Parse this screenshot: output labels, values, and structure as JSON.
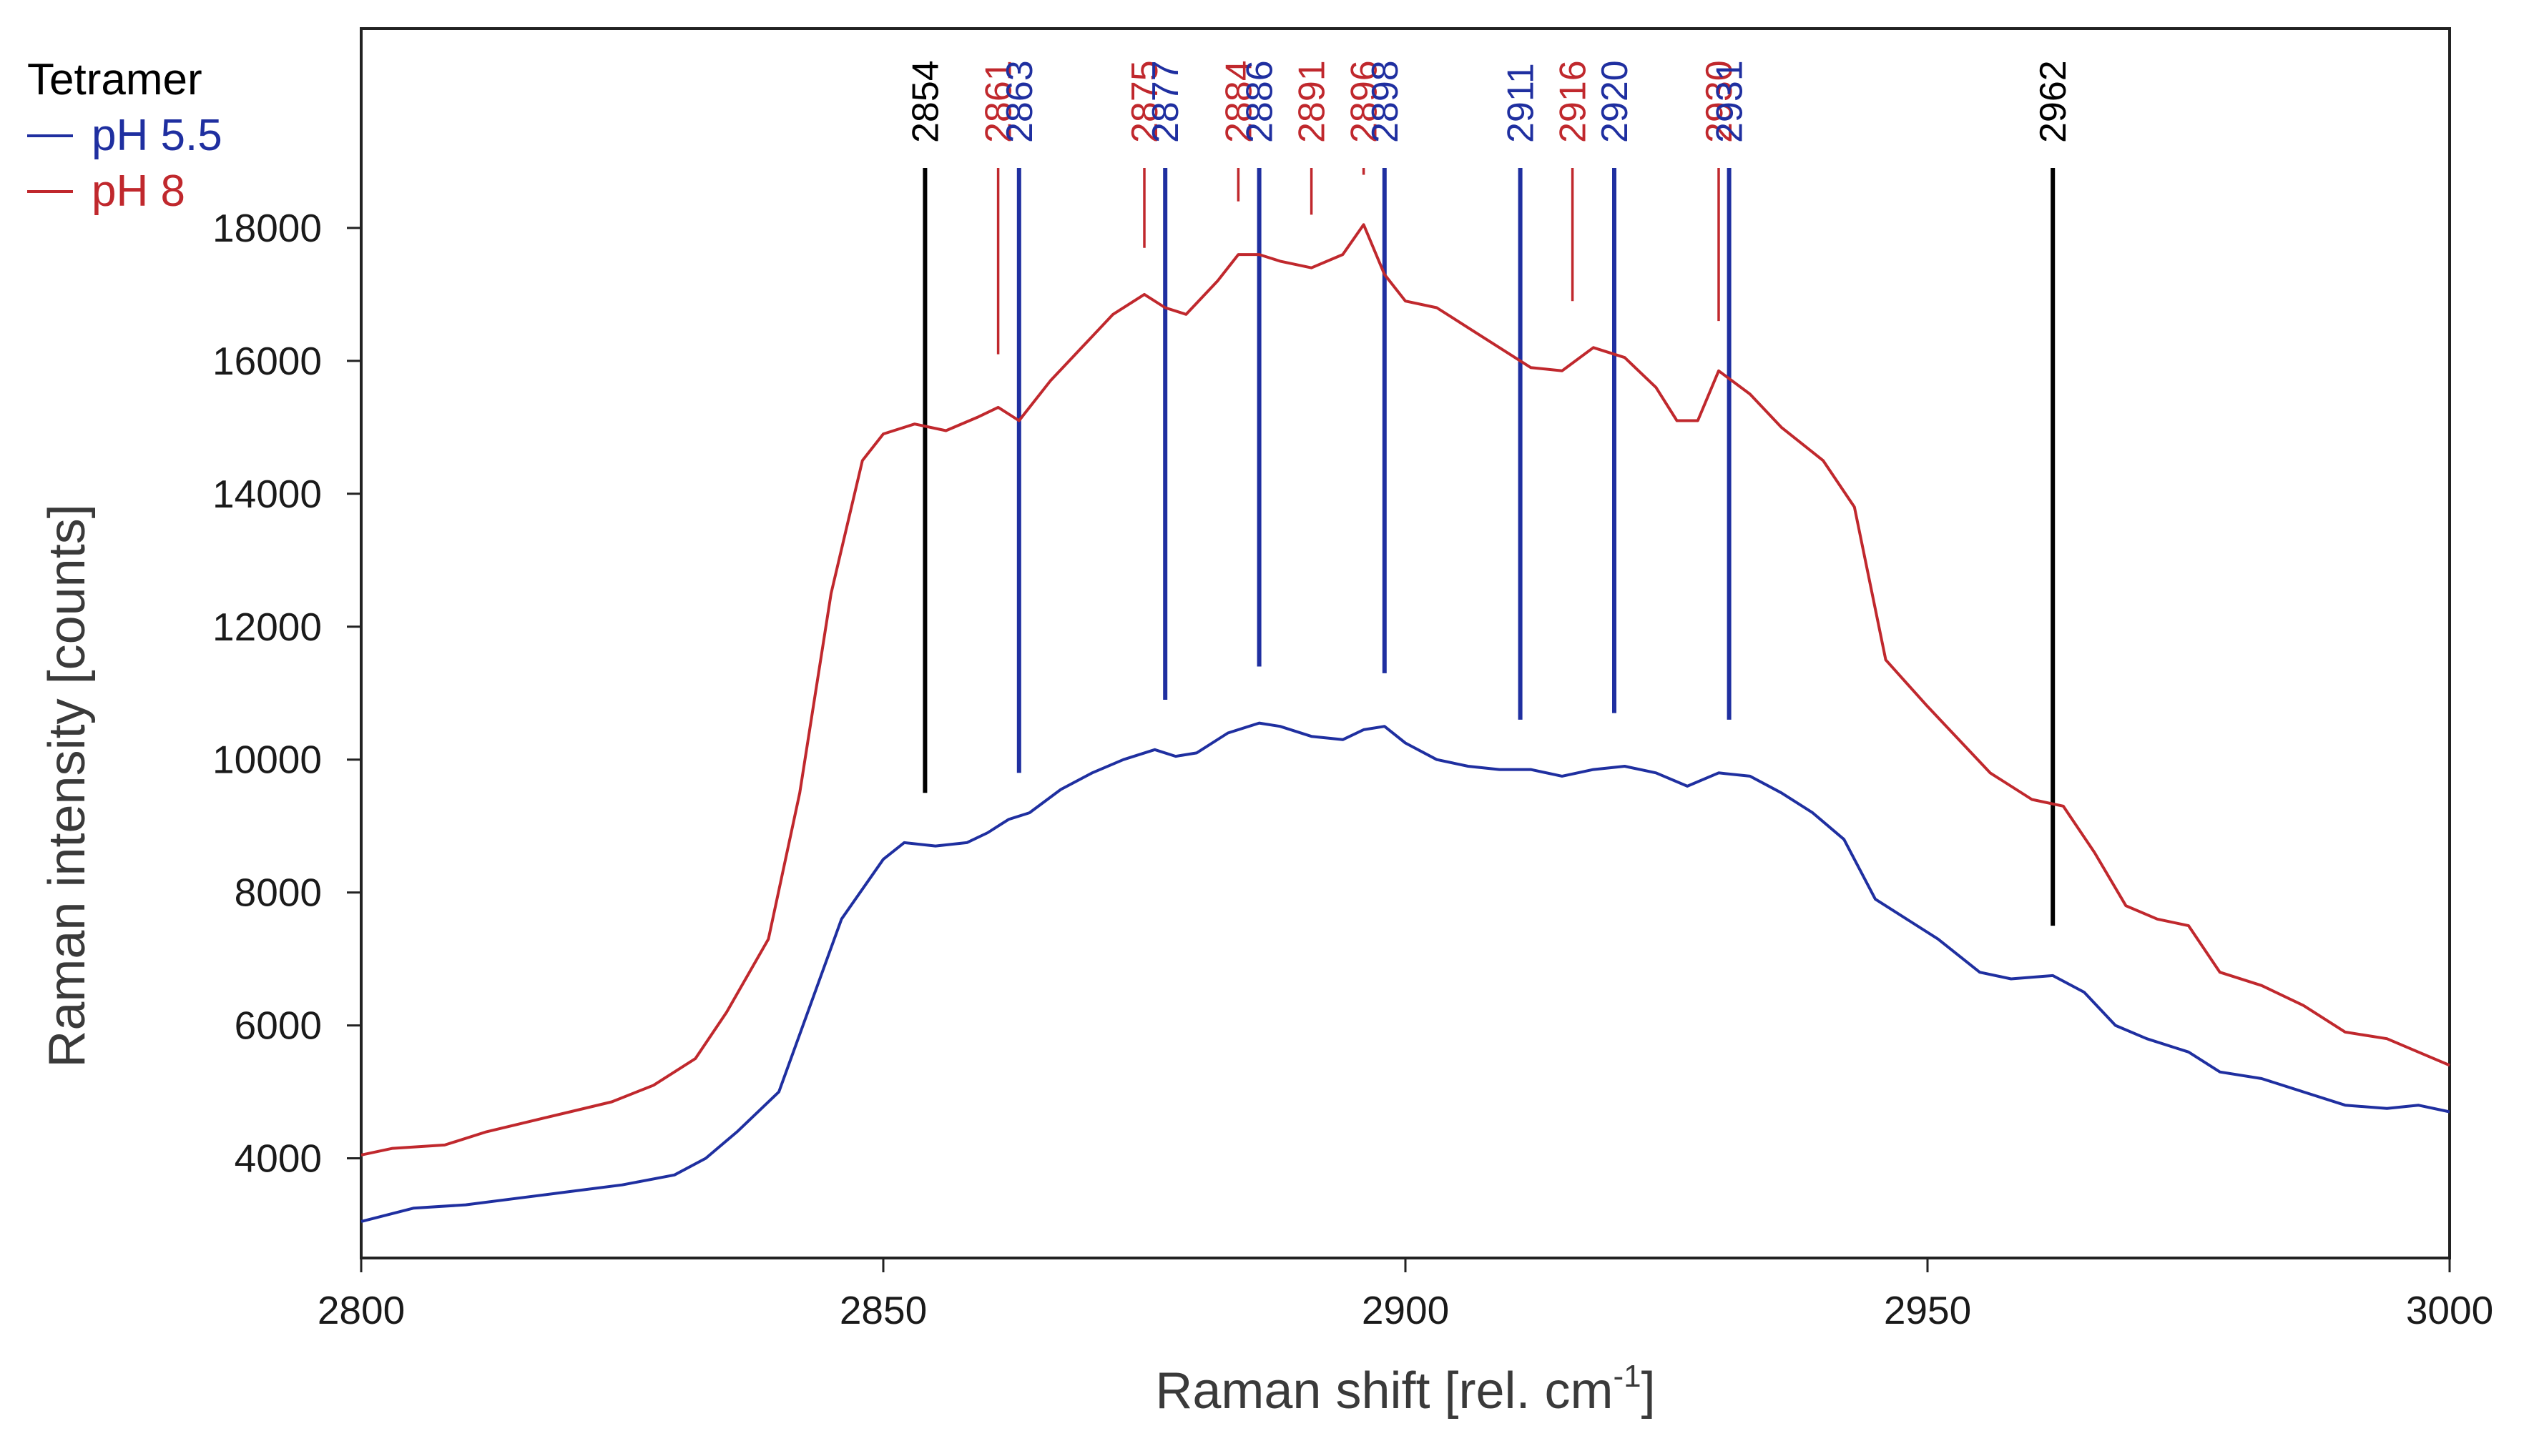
{
  "chart_data": {
    "type": "line",
    "title": "",
    "xlabel": "Raman shift [rel. cm",
    "xlabel_sup": "-1",
    "xlabel_end": "]",
    "ylabel": "Raman intensity [counts]",
    "xlim": [
      2800,
      3000
    ],
    "ylim": [
      2500,
      21000
    ],
    "x_ticks": [
      2800,
      2850,
      2900,
      2950,
      3000
    ],
    "y_ticks": [
      4000,
      6000,
      8000,
      10000,
      12000,
      14000,
      16000,
      18000
    ],
    "grid": false,
    "legend": {
      "title": "Tetramer",
      "placement": "top-left-outside",
      "entries": [
        {
          "name": "pH 5.5",
          "color": "#1f2fa0"
        },
        {
          "name": "pH 8",
          "color": "#c0282d"
        }
      ]
    },
    "series": [
      {
        "name": "pH 5.5",
        "color": "#1f2fa0",
        "x": [
          2800,
          2805,
          2810,
          2815,
          2820,
          2825,
          2830,
          2833,
          2836,
          2840,
          2843,
          2846,
          2850,
          2852,
          2855,
          2858,
          2860,
          2862,
          2864,
          2867,
          2870,
          2873,
          2876,
          2878,
          2880,
          2883,
          2886,
          2888,
          2891,
          2894,
          2896,
          2898,
          2900,
          2903,
          2906,
          2909,
          2912,
          2915,
          2918,
          2921,
          2924,
          2927,
          2930,
          2933,
          2936,
          2939,
          2942,
          2945,
          2948,
          2951,
          2955,
          2958,
          2962,
          2965,
          2968,
          2971,
          2975,
          2978,
          2982,
          2986,
          2990,
          2994,
          2997,
          3000
        ],
        "values": [
          3050,
          3250,
          3300,
          3400,
          3500,
          3600,
          3750,
          4000,
          4400,
          5000,
          6300,
          7600,
          8500,
          8750,
          8700,
          8750,
          8900,
          9100,
          9200,
          9550,
          9800,
          10000,
          10150,
          10050,
          10100,
          10400,
          10550,
          10500,
          10350,
          10300,
          10450,
          10500,
          10250,
          10000,
          9900,
          9850,
          9850,
          9750,
          9850,
          9900,
          9800,
          9600,
          9800,
          9750,
          9500,
          9200,
          8800,
          7900,
          7600,
          7300,
          6800,
          6700,
          6750,
          6500,
          6000,
          5800,
          5600,
          5300,
          5200,
          5000,
          4800,
          4750,
          4800,
          4700
        ]
      },
      {
        "name": "pH 8",
        "color": "#c0282d",
        "x": [
          2800,
          2803,
          2808,
          2812,
          2816,
          2820,
          2824,
          2828,
          2832,
          2835,
          2839,
          2842,
          2845,
          2848,
          2850,
          2853,
          2856,
          2859,
          2861,
          2863,
          2866,
          2869,
          2872,
          2875,
          2877,
          2879,
          2882,
          2884,
          2886,
          2888,
          2891,
          2894,
          2896,
          2898,
          2900,
          2903,
          2906,
          2909,
          2912,
          2915,
          2918,
          2921,
          2924,
          2926,
          2928,
          2930,
          2933,
          2936,
          2940,
          2943,
          2946,
          2950,
          2953,
          2956,
          2960,
          2963,
          2966,
          2969,
          2972,
          2975,
          2978,
          2982,
          2986,
          2990,
          2994,
          2997,
          3000
        ],
        "values": [
          4050,
          4150,
          4200,
          4400,
          4550,
          4700,
          4850,
          5100,
          5500,
          6200,
          7300,
          9500,
          12500,
          14500,
          14900,
          15050,
          14950,
          15150,
          15300,
          15100,
          15700,
          16200,
          16700,
          17000,
          16800,
          16700,
          17200,
          17600,
          17600,
          17500,
          17400,
          17600,
          18050,
          17300,
          16900,
          16800,
          16500,
          16200,
          15900,
          15850,
          16200,
          16050,
          15600,
          15100,
          15100,
          15850,
          15500,
          15000,
          14500,
          13800,
          11500,
          10800,
          10300,
          9800,
          9400,
          9300,
          8600,
          7800,
          7600,
          7500,
          6800,
          6600,
          6300,
          5900,
          5800,
          5600,
          5400
        ]
      }
    ],
    "peak_markers": [
      {
        "x": 2854,
        "label": "2854",
        "color": "#000000",
        "bottom": 9500
      },
      {
        "x": 2861,
        "label": "2861",
        "color": "#c0282d",
        "bottom": 16100
      },
      {
        "x": 2863,
        "label": "2863",
        "color": "#1f2fa0",
        "bottom": 9800
      },
      {
        "x": 2875,
        "label": "2875",
        "color": "#c0282d",
        "bottom": 17700
      },
      {
        "x": 2877,
        "label": "2877",
        "color": "#1f2fa0",
        "bottom": 10900
      },
      {
        "x": 2884,
        "label": "2884",
        "color": "#c0282d",
        "bottom": 18400
      },
      {
        "x": 2886,
        "label": "2886",
        "color": "#1f2fa0",
        "bottom": 11400
      },
      {
        "x": 2891,
        "label": "2891",
        "color": "#c0282d",
        "bottom": 18200
      },
      {
        "x": 2896,
        "label": "2896",
        "color": "#c0282d",
        "bottom": 18800
      },
      {
        "x": 2898,
        "label": "2898",
        "color": "#1f2fa0",
        "bottom": 11300
      },
      {
        "x": 2911,
        "label": "2911",
        "color": "#1f2fa0",
        "bottom": 10600
      },
      {
        "x": 2916,
        "label": "2916",
        "color": "#c0282d",
        "bottom": 16900
      },
      {
        "x": 2920,
        "label": "2920",
        "color": "#1f2fa0",
        "bottom": 10700
      },
      {
        "x": 2930,
        "label": "2930",
        "color": "#c0282d",
        "bottom": 16600
      },
      {
        "x": 2931,
        "label": "2931",
        "color": "#1f2fa0",
        "bottom": 10600
      },
      {
        "x": 2962,
        "label": "2962",
        "color": "#000000",
        "bottom": 7500
      }
    ]
  }
}
